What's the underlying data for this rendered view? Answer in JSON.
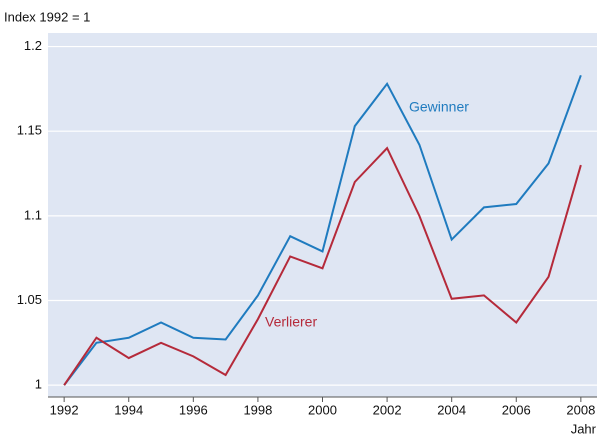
{
  "chart_data": {
    "type": "line",
    "y_label": "Index 1992 = 1",
    "x_label": "Jahr",
    "x": [
      1992,
      1993,
      1994,
      1995,
      1996,
      1997,
      1998,
      1999,
      2000,
      2001,
      2002,
      2003,
      2004,
      2005,
      2006,
      2007,
      2008
    ],
    "series": [
      {
        "name": "Gewinner",
        "color": "#1f7bbf",
        "values": [
          1.0,
          1.025,
          1.028,
          1.037,
          1.028,
          1.027,
          1.053,
          1.088,
          1.079,
          1.153,
          1.178,
          1.142,
          1.086,
          1.105,
          1.107,
          1.131,
          1.183
        ]
      },
      {
        "name": "Verlierer",
        "color": "#b52a3a",
        "values": [
          1.0,
          1.028,
          1.016,
          1.025,
          1.017,
          1.006,
          1.039,
          1.076,
          1.069,
          1.12,
          1.14,
          1.1,
          1.051,
          1.053,
          1.037,
          1.064,
          1.13
        ]
      }
    ],
    "xlim": [
      1991.5,
      2008.5
    ],
    "ylim": [
      0.993,
      1.208
    ],
    "xticks": [
      1992,
      1994,
      1996,
      1998,
      2000,
      2002,
      2004,
      2006,
      2008
    ],
    "yticks": [
      1,
      1.05,
      1.1,
      1.15,
      1.2
    ],
    "grid": true,
    "background": "#dfe6f3"
  }
}
